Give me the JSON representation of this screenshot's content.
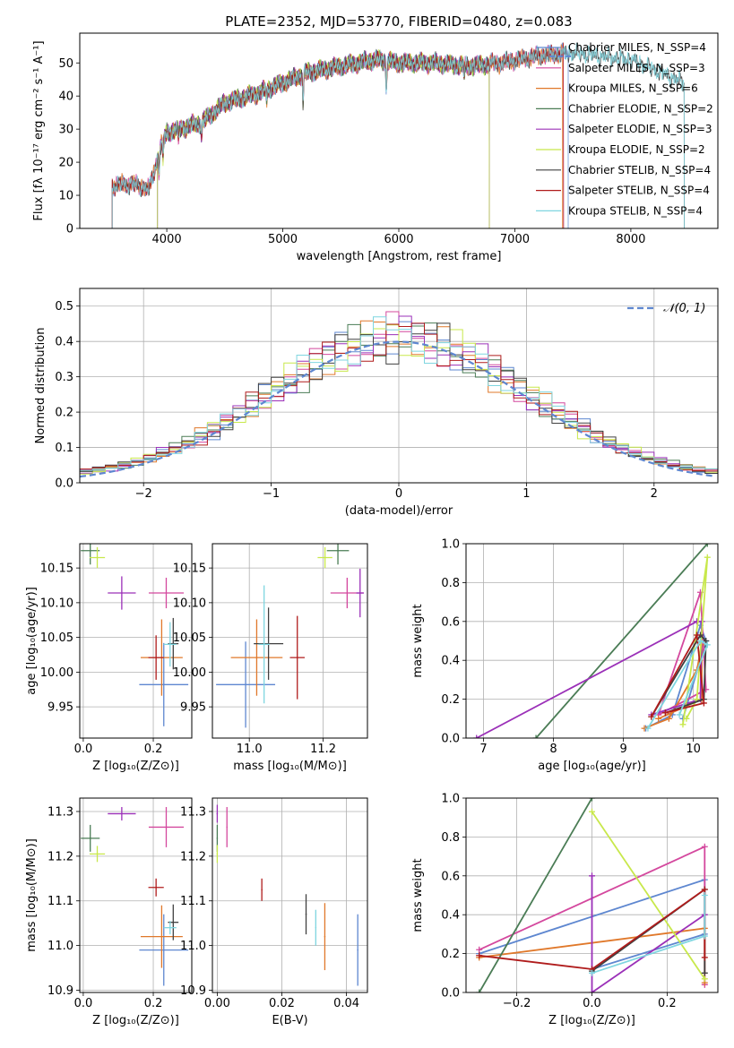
{
  "figure": {
    "title": "PLATE=2352, MJD=53770, FIBERID=0480, z=0.083"
  },
  "chart_data": [
    {
      "type": "line",
      "panel": "spectrum",
      "xlabel": "wavelength [Angstrom, rest frame]",
      "ylabel": "Flux [fλ 10⁻¹⁷ erg cm⁻² s⁻¹ A⁻¹]",
      "xlim": [
        3250,
        8750
      ],
      "ylim": [
        0,
        59
      ],
      "xticks": [
        4000,
        5000,
        6000,
        7000,
        8000
      ],
      "yticks": [
        0,
        10,
        20,
        30,
        40,
        50
      ],
      "legend_position": "right",
      "series": [
        {
          "name": "Chabrier MILES, N_SSP=4",
          "color": "#5e87d0",
          "range": [
            3530,
            7460
          ],
          "cutoff": 7460
        },
        {
          "name": "Salpeter MILES, N_SSP=3",
          "color": "#d4489e",
          "range": [
            3530,
            7420
          ],
          "cutoff": 7420
        },
        {
          "name": "Kroupa MILES, N_SSP=6",
          "color": "#e0782a",
          "range": [
            3530,
            7410
          ],
          "cutoff": 7410
        },
        {
          "name": "Chabrier ELODIE, N_SSP=2",
          "color": "#4a7c55",
          "range": [
            3920,
            6780
          ],
          "cutoff": 6780
        },
        {
          "name": "Salpeter ELODIE, N_SSP=3",
          "color": "#9b30b8",
          "range": [
            3920,
            6780
          ],
          "cutoff": 6780
        },
        {
          "name": "Kroupa ELODIE, N_SSP=2",
          "color": "#c8e84b",
          "range": [
            3920,
            6780
          ],
          "cutoff": 6780
        },
        {
          "name": "Chabrier STELIB, N_SSP=4",
          "color": "#404040",
          "range": [
            3530,
            8460
          ],
          "cutoff": 8460
        },
        {
          "name": "Salpeter STELIB, N_SSP=4",
          "color": "#b01c1c",
          "range": [
            3530,
            7420
          ],
          "cutoff": 7420
        },
        {
          "name": "Kroupa STELIB, N_SSP=4",
          "color": "#7fd6e0",
          "range": [
            3530,
            8460
          ],
          "cutoff": 8460
        }
      ],
      "profile_points": [
        [
          3530,
          13
        ],
        [
          3700,
          13.5
        ],
        [
          3850,
          12
        ],
        [
          3950,
          25
        ],
        [
          4000,
          29
        ],
        [
          4300,
          32
        ],
        [
          4500,
          38
        ],
        [
          4800,
          41
        ],
        [
          5000,
          44
        ],
        [
          5200,
          47
        ],
        [
          5500,
          49
        ],
        [
          5800,
          51
        ],
        [
          6000,
          50
        ],
        [
          6300,
          50
        ],
        [
          6600,
          49
        ],
        [
          6900,
          50
        ],
        [
          7200,
          52
        ],
        [
          7500,
          53
        ],
        [
          8000,
          51
        ],
        [
          8460,
          44
        ]
      ],
      "absorption_features": [
        [
          3934,
          6
        ],
        [
          3968,
          6
        ],
        [
          4102,
          3
        ],
        [
          4300,
          4
        ],
        [
          4861,
          3
        ],
        [
          5175,
          9
        ],
        [
          5892,
          8
        ],
        [
          6563,
          3
        ]
      ],
      "dashed_reference": {
        "x_start": 7300,
        "x_end": 7500,
        "y": 52
      }
    },
    {
      "type": "line",
      "panel": "residual-histogram",
      "xlabel": "(data-model)/error",
      "ylabel": "Normed distribution",
      "xlim": [
        -2.5,
        2.5
      ],
      "ylim": [
        0,
        0.55
      ],
      "xticks": [
        -2,
        -1,
        0,
        1,
        2
      ],
      "yticks": [
        0,
        0.1,
        0.2,
        0.3,
        0.4,
        0.5
      ],
      "legend_position": "top-right",
      "reference_curve": {
        "name": "𝒩(0, 1)",
        "color": "#5e87d0",
        "style": "dashed",
        "mean": 0,
        "sigma": 1
      },
      "bin_width": 0.1,
      "series_colors": [
        "#5e87d0",
        "#d4489e",
        "#e0782a",
        "#4a7c55",
        "#9b30b8",
        "#c8e84b",
        "#404040",
        "#b01c1c",
        "#7fd6e0"
      ]
    },
    {
      "type": "scatter",
      "panel": "age-vs-Z",
      "xlabel": "Z [log₁₀(Z/Z⊙)]",
      "ylabel": "age  [log₁₀(age/yr)]",
      "xlim": [
        -0.01,
        0.31
      ],
      "ylim": [
        9.905,
        10.185
      ],
      "xticks": [
        0.0,
        0.2
      ],
      "yticks": [
        9.95,
        10.0,
        10.05,
        10.1,
        10.15
      ],
      "points": [
        {
          "color": "#5e87d0",
          "x": 0.23,
          "y": 9.982,
          "xerr": 0.07,
          "yerr": 0.06
        },
        {
          "color": "#d4489e",
          "x": 0.237,
          "y": 10.114,
          "xerr": 0.05,
          "yerr": 0.022
        },
        {
          "color": "#e0782a",
          "x": 0.224,
          "y": 10.021,
          "xerr": 0.06,
          "yerr": 0.055
        },
        {
          "color": "#4a7c55",
          "x": 0.02,
          "y": 10.175,
          "xerr": 0.027,
          "yerr": 0.02
        },
        {
          "color": "#9b30b8",
          "x": 0.11,
          "y": 10.114,
          "xerr": 0.04,
          "yerr": 0.024
        },
        {
          "color": "#c8e84b",
          "x": 0.04,
          "y": 10.165,
          "xerr": 0.022,
          "yerr": 0.015
        },
        {
          "color": "#404040",
          "x": 0.257,
          "y": 10.041,
          "xerr": 0.015,
          "yerr": 0.037
        },
        {
          "color": "#b01c1c",
          "x": 0.208,
          "y": 10.021,
          "xerr": 0.022,
          "yerr": 0.032
        },
        {
          "color": "#7fd6e0",
          "x": 0.248,
          "y": 10.04,
          "xerr": 0.018,
          "yerr": 0.032
        }
      ]
    },
    {
      "type": "scatter",
      "panel": "age-vs-mass",
      "xlabel": "mass [log₁₀(M/M⊙)]",
      "ylabel": "",
      "xlim": [
        10.9,
        11.32
      ],
      "ylim": [
        9.905,
        10.185
      ],
      "xticks": [
        11.0,
        11.2
      ],
      "yticks": [
        9.95,
        10.0,
        10.05,
        10.1,
        10.15
      ],
      "points": [
        {
          "color": "#5e87d0",
          "x": 10.99,
          "y": 9.982,
          "xerr": 0.08,
          "yerr": 0.062
        },
        {
          "color": "#d4489e",
          "x": 11.265,
          "y": 10.114,
          "xerr": 0.045,
          "yerr": 0.022
        },
        {
          "color": "#e0782a",
          "x": 11.02,
          "y": 10.021,
          "xerr": 0.07,
          "yerr": 0.055
        },
        {
          "color": "#4a7c55",
          "x": 11.24,
          "y": 10.175,
          "xerr": 0.03,
          "yerr": 0.02
        },
        {
          "color": "#9b30b8",
          "x": 11.3,
          "y": 10.114,
          "xerr": 0.01,
          "yerr": 0.035
        },
        {
          "color": "#c8e84b",
          "x": 11.205,
          "y": 10.165,
          "xerr": 0.02,
          "yerr": 0.015
        },
        {
          "color": "#404040",
          "x": 11.052,
          "y": 10.041,
          "xerr": 0.04,
          "yerr": 0.052
        },
        {
          "color": "#b01c1c",
          "x": 11.13,
          "y": 10.021,
          "xerr": 0.02,
          "yerr": 0.06
        },
        {
          "color": "#7fd6e0",
          "x": 11.04,
          "y": 10.04,
          "xerr": 0.015,
          "yerr": 0.085
        }
      ]
    },
    {
      "type": "line",
      "panel": "mass-weight-vs-age",
      "xlabel": "age  [log₁₀(age/yr)]",
      "ylabel": "mass weight",
      "xlim": [
        6.75,
        10.35
      ],
      "ylim": [
        0,
        1
      ],
      "xticks": [
        7,
        8,
        9,
        10
      ],
      "yticks": [
        0,
        0.2,
        0.4,
        0.6,
        0.8,
        1.0
      ],
      "series": [
        {
          "color": "#5e87d0",
          "points": [
            [
              9.32,
              0.05
            ],
            [
              9.7,
              0.12
            ],
            [
              10.1,
              0.58
            ],
            [
              10.18,
              0.5
            ],
            [
              9.85,
              0.1
            ]
          ]
        },
        {
          "color": "#d4489e",
          "points": [
            [
              9.5,
              0.12
            ],
            [
              10.1,
              0.75
            ],
            [
              10.18,
              0.25
            ],
            [
              9.5,
              0.12
            ]
          ]
        },
        {
          "color": "#e0782a",
          "points": [
            [
              9.3,
              0.05
            ],
            [
              9.65,
              0.1
            ],
            [
              10.05,
              0.35
            ],
            [
              10.12,
              0.48
            ],
            [
              10.12,
              0.2
            ],
            [
              9.5,
              0.1
            ]
          ]
        },
        {
          "color": "#4a7c55",
          "points": [
            [
              7.75,
              0
            ],
            [
              10.2,
              1.0
            ]
          ]
        },
        {
          "color": "#9b30b8",
          "points": [
            [
              6.9,
              0
            ],
            [
              10.05,
              0.6
            ],
            [
              10.12,
              0.6
            ],
            [
              10.1,
              0.2
            ],
            [
              9.4,
              0.12
            ]
          ]
        },
        {
          "color": "#c8e84b",
          "points": [
            [
              9.85,
              0.07
            ],
            [
              10.2,
              0.93
            ],
            [
              10.05,
              0.2
            ],
            [
              9.9,
              0.1
            ]
          ]
        },
        {
          "color": "#404040",
          "points": [
            [
              9.4,
              0.11
            ],
            [
              10.1,
              0.53
            ],
            [
              10.18,
              0.5
            ],
            [
              10.15,
              0.2
            ],
            [
              9.6,
              0.13
            ]
          ]
        },
        {
          "color": "#b01c1c",
          "points": [
            [
              9.4,
              0.11
            ],
            [
              10.05,
              0.53
            ],
            [
              10.15,
              0.18
            ],
            [
              9.6,
              0.13
            ]
          ]
        },
        {
          "color": "#7fd6e0",
          "points": [
            [
              9.35,
              0.05
            ],
            [
              10.1,
              0.5
            ],
            [
              10.2,
              0.48
            ],
            [
              9.8,
              0.12
            ]
          ]
        }
      ]
    },
    {
      "type": "scatter",
      "panel": "mass-vs-Z",
      "xlabel": "Z [log₁₀(Z/Z⊙)]",
      "ylabel": "mass [log₁₀(M/M⊙)]",
      "xlim": [
        -0.01,
        0.31
      ],
      "ylim": [
        10.895,
        11.33
      ],
      "xticks": [
        0.0,
        0.2
      ],
      "yticks": [
        10.9,
        11.0,
        11.1,
        11.2,
        11.3
      ],
      "points": [
        {
          "color": "#5e87d0",
          "x": 0.23,
          "y": 10.99,
          "xerr": 0.07,
          "yerr": 0.08
        },
        {
          "color": "#d4489e",
          "x": 0.237,
          "y": 11.265,
          "xerr": 0.05,
          "yerr": 0.045
        },
        {
          "color": "#e0782a",
          "x": 0.224,
          "y": 11.02,
          "xerr": 0.06,
          "yerr": 0.07
        },
        {
          "color": "#4a7c55",
          "x": 0.02,
          "y": 11.24,
          "xerr": 0.027,
          "yerr": 0.03
        },
        {
          "color": "#9b30b8",
          "x": 0.11,
          "y": 11.295,
          "xerr": 0.04,
          "yerr": 0.015
        },
        {
          "color": "#c8e84b",
          "x": 0.04,
          "y": 11.205,
          "xerr": 0.022,
          "yerr": 0.018
        },
        {
          "color": "#404040",
          "x": 0.257,
          "y": 11.052,
          "xerr": 0.015,
          "yerr": 0.04
        },
        {
          "color": "#b01c1c",
          "x": 0.208,
          "y": 11.13,
          "xerr": 0.022,
          "yerr": 0.02
        },
        {
          "color": "#7fd6e0",
          "x": 0.248,
          "y": 11.04,
          "xerr": 0.018,
          "yerr": 0.015
        }
      ]
    },
    {
      "type": "scatter",
      "panel": "mass-vs-EBV",
      "xlabel": "E(B-V)",
      "ylabel": "",
      "xlim": [
        -0.0015,
        0.0465
      ],
      "ylim": [
        10.895,
        11.33
      ],
      "xticks": [
        0.0,
        0.02,
        0.04
      ],
      "yticks": [
        10.9,
        11.0,
        11.1,
        11.2,
        11.3
      ],
      "points": [
        {
          "color": "#5e87d0",
          "x": 0.0435,
          "y": 10.99,
          "xerr": 0,
          "yerr": 0.08
        },
        {
          "color": "#d4489e",
          "x": 0.003,
          "y": 11.265,
          "xerr": 0,
          "yerr": 0.045
        },
        {
          "color": "#e0782a",
          "x": 0.0333,
          "y": 11.02,
          "xerr": 0,
          "yerr": 0.075
        },
        {
          "color": "#4a7c55",
          "x": 0.0,
          "y": 11.24,
          "xerr": 0,
          "yerr": 0.03
        },
        {
          "color": "#9b30b8",
          "x": 0.0,
          "y": 11.295,
          "xerr": 0,
          "yerr": 0.02
        },
        {
          "color": "#c8e84b",
          "x": 0.0,
          "y": 11.205,
          "xerr": 0,
          "yerr": 0.02
        },
        {
          "color": "#404040",
          "x": 0.0275,
          "y": 11.07,
          "xerr": 0,
          "yerr": 0.045
        },
        {
          "color": "#b01c1c",
          "x": 0.0138,
          "y": 11.125,
          "xerr": 0,
          "yerr": 0.025
        },
        {
          "color": "#7fd6e0",
          "x": 0.0305,
          "y": 11.04,
          "xerr": 0,
          "yerr": 0.04
        }
      ]
    },
    {
      "type": "line",
      "panel": "mass-weight-vs-Z",
      "xlabel": "Z [log₁₀(Z/Z⊙)]",
      "ylabel": "mass weight",
      "xlim": [
        -0.335,
        0.335
      ],
      "ylim": [
        0,
        1
      ],
      "xticks": [
        -0.2,
        0.0,
        0.2
      ],
      "yticks": [
        0,
        0.2,
        0.4,
        0.6,
        0.8,
        1.0
      ],
      "series": [
        {
          "color": "#5e87d0",
          "points": [
            [
              -0.3,
              0.2
            ],
            [
              0.3,
              0.58
            ],
            [
              0.3,
              0.3
            ],
            [
              0.0,
              0.12
            ]
          ]
        },
        {
          "color": "#d4489e",
          "points": [
            [
              -0.3,
              0.22
            ],
            [
              0.3,
              0.75
            ],
            [
              0.3,
              0.04
            ]
          ]
        },
        {
          "color": "#e0782a",
          "points": [
            [
              -0.3,
              0.18
            ],
            [
              0.3,
              0.33
            ],
            [
              0.3,
              0.05
            ]
          ]
        },
        {
          "color": "#4a7c55",
          "points": [
            [
              -0.3,
              0
            ],
            [
              0.0,
              1.0
            ]
          ]
        },
        {
          "color": "#9b30b8",
          "points": [
            [
              0.0,
              0.6
            ],
            [
              0.0,
              0
            ],
            [
              0.3,
              0.4
            ]
          ]
        },
        {
          "color": "#c8e84b",
          "points": [
            [
              0.0,
              0.93
            ],
            [
              0.3,
              0.07
            ]
          ]
        },
        {
          "color": "#404040",
          "points": [
            [
              0.0,
              0.11
            ],
            [
              0.3,
              0.53
            ],
            [
              0.3,
              0.1
            ]
          ]
        },
        {
          "color": "#b01c1c",
          "points": [
            [
              -0.3,
              0.19
            ],
            [
              0.0,
              0.12
            ],
            [
              0.3,
              0.53
            ],
            [
              0.3,
              0.18
            ]
          ]
        },
        {
          "color": "#7fd6e0",
          "points": [
            [
              0.0,
              0.1
            ],
            [
              0.3,
              0.29
            ],
            [
              0.3,
              0.5
            ]
          ]
        }
      ]
    }
  ]
}
